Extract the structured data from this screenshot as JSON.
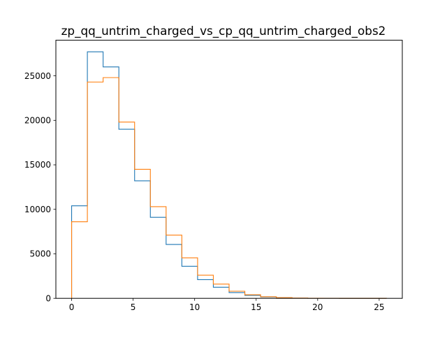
{
  "chart_data": {
    "type": "histogram",
    "title": "zp_qq_untrim_charged_vs_cp_qq_untrim_charged_obs2",
    "xlabel": "",
    "ylabel": "",
    "xlim": [
      -1.28,
      26.88
    ],
    "ylim": [
      0,
      29000
    ],
    "x_ticks": [
      0,
      5,
      10,
      15,
      20,
      25
    ],
    "y_ticks": [
      0,
      5000,
      10000,
      15000,
      20000,
      25000
    ],
    "grid": false,
    "bin_edges": [
      0,
      1.28,
      2.56,
      3.84,
      5.12,
      6.4,
      7.68,
      8.96,
      10.24,
      11.52,
      12.8,
      14.08,
      15.36,
      16.64,
      17.92,
      19.2,
      20.48,
      21.76,
      23.04,
      24.32,
      25.6
    ],
    "series": [
      {
        "color": "#1f77b4",
        "values": [
          10400,
          27700,
          26000,
          19000,
          13200,
          9100,
          6050,
          3600,
          2100,
          1250,
          650,
          330,
          150,
          60,
          25,
          10,
          5,
          3,
          2,
          1
        ]
      },
      {
        "color": "#ff7f0e",
        "values": [
          8600,
          24300,
          24800,
          19800,
          14500,
          10300,
          7100,
          4550,
          2600,
          1600,
          800,
          400,
          180,
          80,
          30,
          12,
          6,
          3,
          2,
          1
        ]
      }
    ]
  }
}
